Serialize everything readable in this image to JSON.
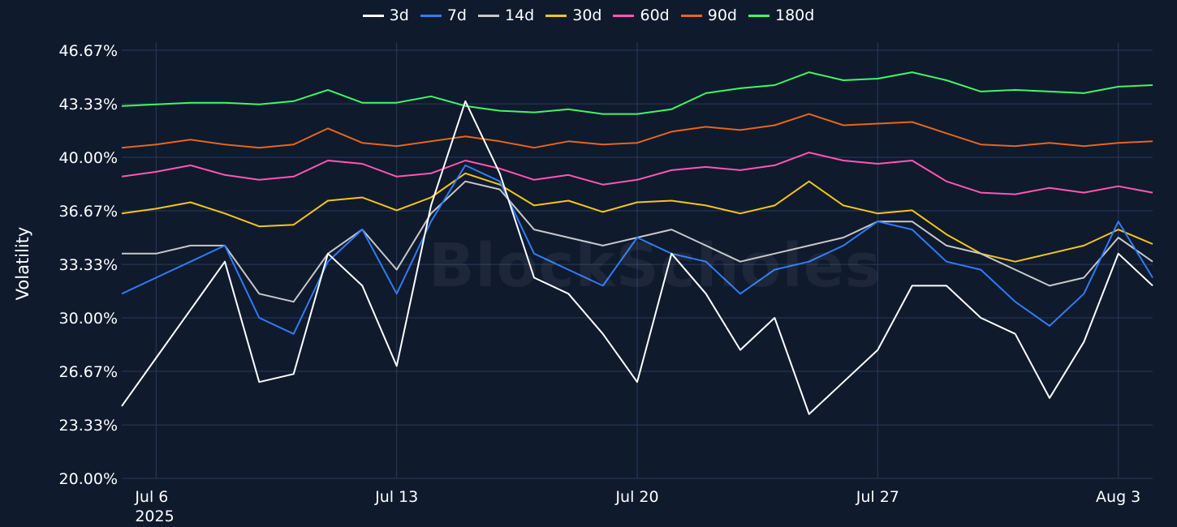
{
  "chart_data": {
    "type": "line",
    "title": "",
    "xlabel": "",
    "ylabel": "Volatility",
    "ylim": [
      20.0,
      46.67
    ],
    "y_ticks": [
      "20.00%",
      "23.33%",
      "26.67%",
      "30.00%",
      "33.33%",
      "36.67%",
      "40.00%",
      "43.33%",
      "46.67%"
    ],
    "y_tick_values": [
      20.0,
      23.33,
      26.67,
      30.0,
      33.33,
      36.67,
      40.0,
      43.33,
      46.67
    ],
    "x_range": [
      "2025-07-05",
      "2025-08-04"
    ],
    "x_ticks": [
      {
        "date": "2025-07-06",
        "label": "Jul 6",
        "sublabel": "2025"
      },
      {
        "date": "2025-07-13",
        "label": "Jul 13"
      },
      {
        "date": "2025-07-20",
        "label": "Jul 20"
      },
      {
        "date": "2025-07-27",
        "label": "Jul 27"
      },
      {
        "date": "2025-08-03",
        "label": "Aug 3"
      }
    ],
    "grid": true,
    "legend_position": "top-center",
    "watermark": "BlockScholes",
    "x": [
      "2025-07-05",
      "2025-07-06",
      "2025-07-07",
      "2025-07-08",
      "2025-07-09",
      "2025-07-10",
      "2025-07-11",
      "2025-07-12",
      "2025-07-13",
      "2025-07-14",
      "2025-07-15",
      "2025-07-16",
      "2025-07-17",
      "2025-07-18",
      "2025-07-19",
      "2025-07-20",
      "2025-07-21",
      "2025-07-22",
      "2025-07-23",
      "2025-07-24",
      "2025-07-25",
      "2025-07-26",
      "2025-07-27",
      "2025-07-28",
      "2025-07-29",
      "2025-07-30",
      "2025-07-31",
      "2025-08-01",
      "2025-08-02",
      "2025-08-03",
      "2025-08-04"
    ],
    "series": [
      {
        "name": "3d",
        "color": "#ffffff",
        "values": [
          24.5,
          27.5,
          30.5,
          33.5,
          26.0,
          26.5,
          34.0,
          32.0,
          27.0,
          37.0,
          43.5,
          39.0,
          32.5,
          31.5,
          29.0,
          26.0,
          34.0,
          31.5,
          28.0,
          30.0,
          24.0,
          26.0,
          28.0,
          32.0,
          32.0,
          30.0,
          29.0,
          25.0,
          28.5,
          34.0,
          32.0
        ]
      },
      {
        "name": "7d",
        "color": "#2e7cf6",
        "values": [
          31.5,
          32.5,
          33.5,
          34.5,
          30.0,
          29.0,
          33.5,
          35.5,
          31.5,
          36.0,
          39.5,
          38.5,
          34.0,
          33.0,
          32.0,
          35.0,
          34.0,
          33.5,
          31.5,
          33.0,
          33.5,
          34.5,
          36.0,
          35.5,
          33.5,
          33.0,
          31.0,
          29.5,
          31.5,
          36.0,
          32.5
        ]
      },
      {
        "name": "14d",
        "color": "#c8c8c8",
        "values": [
          34.0,
          34.0,
          34.5,
          34.5,
          31.5,
          31.0,
          34.0,
          35.5,
          33.0,
          36.5,
          38.5,
          38.0,
          35.5,
          35.0,
          34.5,
          35.0,
          35.5,
          34.5,
          33.5,
          34.0,
          34.5,
          35.0,
          36.0,
          36.0,
          34.5,
          34.0,
          33.0,
          32.0,
          32.5,
          35.0,
          33.5
        ]
      },
      {
        "name": "30d",
        "color": "#f5c518",
        "values": [
          36.5,
          36.8,
          37.2,
          36.5,
          35.7,
          35.8,
          37.3,
          37.5,
          36.7,
          37.5,
          39.0,
          38.3,
          37.0,
          37.3,
          36.6,
          37.2,
          37.3,
          37.0,
          36.5,
          37.0,
          38.5,
          37.0,
          36.5,
          36.7,
          35.2,
          34.0,
          33.5,
          34.0,
          34.5,
          35.5,
          34.6
        ]
      },
      {
        "name": "60d",
        "color": "#ff55b4",
        "values": [
          38.8,
          39.1,
          39.5,
          38.9,
          38.6,
          38.8,
          39.8,
          39.6,
          38.8,
          39.0,
          39.8,
          39.3,
          38.6,
          38.9,
          38.3,
          38.6,
          39.2,
          39.4,
          39.2,
          39.5,
          40.3,
          39.8,
          39.6,
          39.8,
          38.5,
          37.8,
          37.7,
          38.1,
          37.8,
          38.2,
          37.8
        ]
      },
      {
        "name": "90d",
        "color": "#e8651a",
        "values": [
          40.6,
          40.8,
          41.1,
          40.8,
          40.6,
          40.8,
          41.8,
          40.9,
          40.7,
          41.0,
          41.3,
          41.0,
          40.6,
          41.0,
          40.8,
          40.9,
          41.6,
          41.9,
          41.7,
          42.0,
          42.7,
          42.0,
          42.1,
          42.2,
          41.5,
          40.8,
          40.7,
          40.9,
          40.7,
          40.9,
          41.0
        ]
      },
      {
        "name": "180d",
        "color": "#3ff765",
        "values": [
          43.2,
          43.3,
          43.4,
          43.4,
          43.3,
          43.5,
          44.2,
          43.4,
          43.4,
          43.8,
          43.2,
          42.9,
          42.8,
          43.0,
          42.7,
          42.7,
          43.0,
          44.0,
          44.3,
          44.5,
          45.3,
          44.8,
          44.9,
          45.3,
          44.8,
          44.1,
          44.2,
          44.1,
          44.0,
          44.4,
          44.5
        ]
      }
    ]
  }
}
